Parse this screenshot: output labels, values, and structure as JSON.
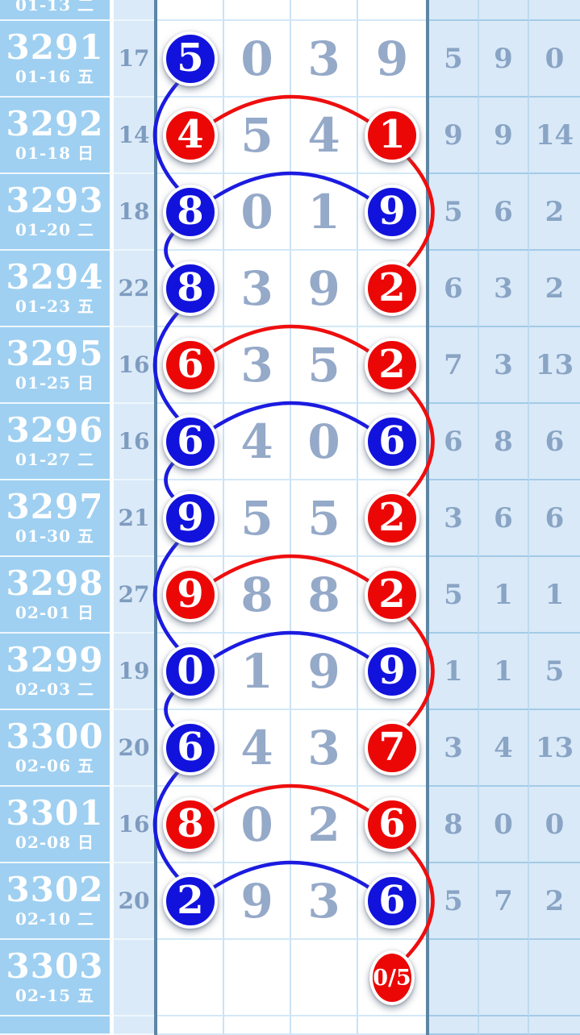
{
  "colors": {
    "ball_blue": "#1212dd",
    "ball_red": "#ec0707",
    "line_blue": "#1b1be0",
    "line_red": "#ee0e0e",
    "issue_col_bg": "#9fd0f1",
    "panel_bg": "#d9e9f8",
    "grid_bg": "#ffffff",
    "dark_divider": "#5c86a3",
    "issue_text": "#ffffff",
    "digit_gray": "#95a9c8",
    "stat_gray": "#89a4c4",
    "left_value_gray": "#7e9cc0"
  },
  "partial_top_row": {
    "date": "01-13 二"
  },
  "chart_data": {
    "type": "table",
    "rows": [
      {
        "issue": "3291",
        "date": "01-16 五",
        "left_value": "17",
        "digits": [
          "5",
          "0",
          "3",
          "9"
        ],
        "p1_circle": "blue",
        "p4_circle": null,
        "right": [
          "5",
          "9",
          "0"
        ]
      },
      {
        "issue": "3292",
        "date": "01-18 日",
        "left_value": "14",
        "digits": [
          "4",
          "5",
          "4",
          "1"
        ],
        "p1_circle": "red",
        "p4_circle": "red",
        "right": [
          "9",
          "9",
          "14"
        ]
      },
      {
        "issue": "3293",
        "date": "01-20 二",
        "left_value": "18",
        "digits": [
          "8",
          "0",
          "1",
          "9"
        ],
        "p1_circle": "blue",
        "p4_circle": "blue",
        "right": [
          "5",
          "6",
          "2"
        ]
      },
      {
        "issue": "3294",
        "date": "01-23 五",
        "left_value": "22",
        "digits": [
          "8",
          "3",
          "9",
          "2"
        ],
        "p1_circle": "blue",
        "p4_circle": "red",
        "right": [
          "6",
          "3",
          "2"
        ]
      },
      {
        "issue": "3295",
        "date": "01-25 日",
        "left_value": "16",
        "digits": [
          "6",
          "3",
          "5",
          "2"
        ],
        "p1_circle": "red",
        "p4_circle": "red",
        "right": [
          "7",
          "3",
          "13"
        ]
      },
      {
        "issue": "3296",
        "date": "01-27 二",
        "left_value": "16",
        "digits": [
          "6",
          "4",
          "0",
          "6"
        ],
        "p1_circle": "blue",
        "p4_circle": "blue",
        "right": [
          "6",
          "8",
          "6"
        ]
      },
      {
        "issue": "3297",
        "date": "01-30 五",
        "left_value": "21",
        "digits": [
          "9",
          "5",
          "5",
          "2"
        ],
        "p1_circle": "blue",
        "p4_circle": "red",
        "right": [
          "3",
          "6",
          "6"
        ]
      },
      {
        "issue": "3298",
        "date": "02-01 日",
        "left_value": "27",
        "digits": [
          "9",
          "8",
          "8",
          "2"
        ],
        "p1_circle": "red",
        "p4_circle": "red",
        "right": [
          "5",
          "1",
          "1"
        ]
      },
      {
        "issue": "3299",
        "date": "02-03 二",
        "left_value": "19",
        "digits": [
          "0",
          "1",
          "9",
          "9"
        ],
        "p1_circle": "blue",
        "p4_circle": "blue",
        "right": [
          "1",
          "1",
          "5"
        ]
      },
      {
        "issue": "3300",
        "date": "02-06 五",
        "left_value": "20",
        "digits": [
          "6",
          "4",
          "3",
          "7"
        ],
        "p1_circle": "blue",
        "p4_circle": "red",
        "right": [
          "3",
          "4",
          "13"
        ]
      },
      {
        "issue": "3301",
        "date": "02-08 日",
        "left_value": "16",
        "digits": [
          "8",
          "0",
          "2",
          "6"
        ],
        "p1_circle": "red",
        "p4_circle": "red",
        "right": [
          "8",
          "0",
          "0"
        ]
      },
      {
        "issue": "3302",
        "date": "02-10 二",
        "left_value": "20",
        "digits": [
          "2",
          "9",
          "3",
          "6"
        ],
        "p1_circle": "blue",
        "p4_circle": "blue",
        "right": [
          "5",
          "7",
          "2"
        ]
      },
      {
        "issue": "3303",
        "date": "02-15 五",
        "left_value": "",
        "digits": [
          "",
          "",
          "",
          "0/5"
        ],
        "p1_circle": null,
        "p4_circle": "red",
        "right": [
          "",
          "",
          ""
        ]
      }
    ],
    "links": {
      "same_row_arcs": [
        {
          "issue": "3292",
          "color": "red"
        },
        {
          "issue": "3293",
          "color": "blue"
        },
        {
          "issue": "3295",
          "color": "red"
        },
        {
          "issue": "3296",
          "color": "blue"
        },
        {
          "issue": "3298",
          "color": "red"
        },
        {
          "issue": "3299",
          "color": "blue"
        },
        {
          "issue": "3301",
          "color": "red"
        },
        {
          "issue": "3302",
          "color": "blue"
        }
      ],
      "pos1_blue_chain": [
        [
          "3291",
          "3293"
        ],
        [
          "3293",
          "3294"
        ],
        [
          "3294",
          "3296"
        ],
        [
          "3296",
          "3297"
        ],
        [
          "3297",
          "3299"
        ],
        [
          "3299",
          "3300"
        ],
        [
          "3300",
          "3302"
        ]
      ],
      "pos4_red_chain": [
        [
          "3292",
          "3294"
        ],
        [
          "3295",
          "3297"
        ],
        [
          "3298",
          "3300"
        ],
        [
          "3301",
          "3303"
        ]
      ]
    }
  }
}
